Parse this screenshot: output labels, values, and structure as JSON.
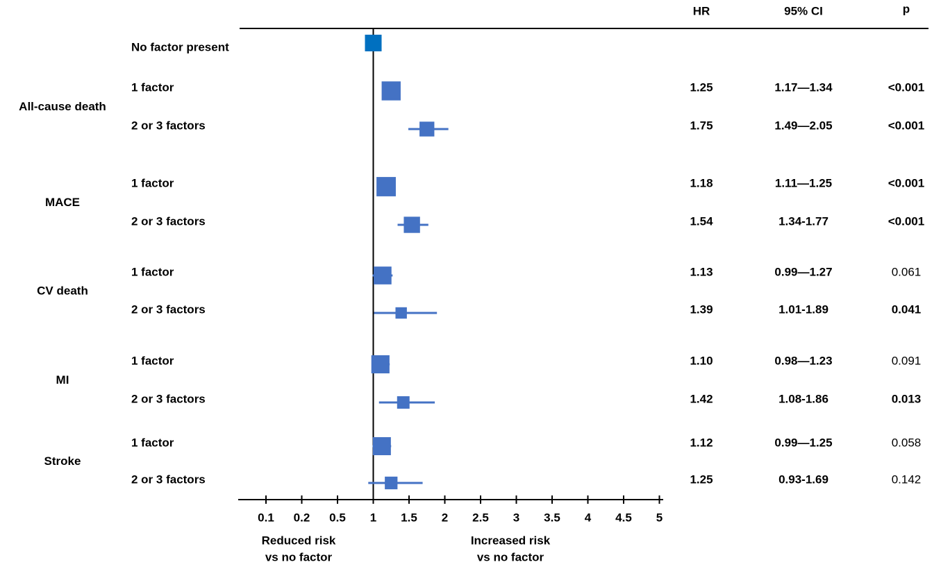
{
  "chart_data": {
    "type": "forest",
    "columns": {
      "hr": "HR",
      "ci": "95% CI",
      "p": "p"
    },
    "reference": {
      "label": "No factor present",
      "value": 1
    },
    "groups": [
      {
        "name": "All-cause death",
        "rows": [
          {
            "label": "1 factor",
            "value": 1.25,
            "lower": 1.17,
            "upper": 1.34,
            "ci": "1.17—1.34",
            "p": "<0.001"
          },
          {
            "label": "2 or 3 factors",
            "value": 1.75,
            "lower": 1.49,
            "upper": 2.05,
            "ci": "1.49—2.05",
            "p": "<0.001"
          }
        ]
      },
      {
        "name": "MACE",
        "rows": [
          {
            "label": "1 factor",
            "value": 1.18,
            "lower": 1.11,
            "upper": 1.25,
            "ci": "1.11—1.25",
            "p": "<0.001"
          },
          {
            "label": "2 or 3 factors",
            "value": 1.54,
            "lower": 1.34,
            "upper": 1.77,
            "ci": "1.34-1.77",
            "p": "<0.001"
          }
        ]
      },
      {
        "name": "CV death",
        "rows": [
          {
            "label": "1 factor",
            "value": 1.13,
            "lower": 0.99,
            "upper": 1.27,
            "ci": "0.99—1.27",
            "p": "0.061"
          },
          {
            "label": "2 or 3 factors",
            "value": 1.39,
            "lower": 1.01,
            "upper": 1.89,
            "ci": "1.01-1.89",
            "p": "0.041"
          }
        ]
      },
      {
        "name": "MI",
        "rows": [
          {
            "label": "1 factor",
            "value": 1.1,
            "value_label": "1.10",
            "lower": 0.98,
            "upper": 1.23,
            "ci": "0.98—1.23",
            "p": "0.091"
          },
          {
            "label": "2 or 3 factors",
            "value": 1.42,
            "lower": 1.08,
            "upper": 1.86,
            "ci": "1.08-1.86",
            "p": "0.013"
          }
        ]
      },
      {
        "name": "Stroke",
        "rows": [
          {
            "label": "1 factor",
            "value": 1.12,
            "lower": 0.99,
            "upper": 1.25,
            "ci": "0.99—1.25",
            "p": "0.058"
          },
          {
            "label": "2 or 3 factors",
            "value": 1.25,
            "lower": 0.93,
            "upper": 1.69,
            "ci": "0.93-1.69",
            "p": "0.142"
          }
        ]
      }
    ],
    "xticks": [
      0.1,
      0.2,
      0.5,
      1,
      1.5,
      2,
      2.5,
      3,
      3.5,
      4,
      4.5,
      5
    ],
    "annotations": [
      [
        "Reduced risk",
        "vs no factor"
      ],
      [
        "Increased risk",
        "vs no factor"
      ]
    ],
    "color": "#4472c4",
    "reference_color": "#0070c0"
  }
}
